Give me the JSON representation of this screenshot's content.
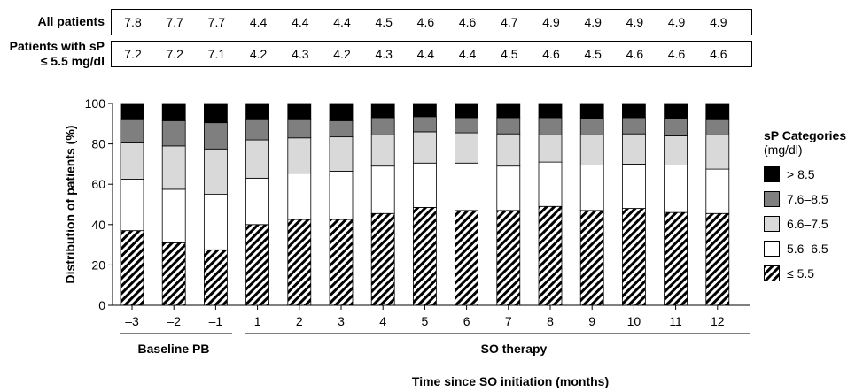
{
  "summary_rows": [
    {
      "label": "All patients",
      "values": [
        "7.8",
        "7.7",
        "7.7",
        "4.4",
        "4.4",
        "4.4",
        "4.5",
        "4.6",
        "4.6",
        "4.7",
        "4.9",
        "4.9",
        "4.9",
        "4.9",
        "4.9"
      ]
    },
    {
      "label": "Patients with sP ≤ 5.5 mg/dl",
      "values": [
        "7.2",
        "7.2",
        "7.1",
        "4.2",
        "4.3",
        "4.2",
        "4.3",
        "4.4",
        "4.4",
        "4.5",
        "4.6",
        "4.5",
        "4.6",
        "4.6",
        "4.6"
      ]
    }
  ],
  "legend": {
    "title": "sP Categories",
    "unit": "(mg/dl)"
  },
  "groups": [
    {
      "label": "Baseline PB",
      "from": "-3",
      "to": "-1"
    },
    {
      "label": "SO therapy",
      "from": "1",
      "to": "12"
    }
  ],
  "colors": {
    "gt85": "#000000",
    "c76_85": "#7f7f7f",
    "c66_75": "#d9d9d9",
    "c56_65": "#ffffff",
    "le55": "hatched"
  },
  "chart_data": {
    "type": "bar",
    "stacked": true,
    "categories": [
      "–3",
      "–2",
      "–1",
      "1",
      "2",
      "3",
      "4",
      "5",
      "6",
      "7",
      "8",
      "9",
      "10",
      "11",
      "12"
    ],
    "xlabel": "Time since SO initiation (months)",
    "ylabel": "Distribution of patients (%)",
    "ylim": [
      0,
      100
    ],
    "yticks": [
      0,
      20,
      40,
      60,
      80,
      100
    ],
    "series": [
      {
        "name": "≤ 5.5",
        "key": "le55",
        "values": [
          37,
          31,
          27.5,
          40,
          42.5,
          42.5,
          45.5,
          48.5,
          47,
          47,
          49,
          47,
          48,
          46,
          45.5
        ]
      },
      {
        "name": "5.6–6.5",
        "key": "c56_65",
        "values": [
          25.5,
          26.5,
          27.5,
          23,
          23,
          24,
          23.5,
          22,
          23.5,
          22,
          22,
          22.5,
          22,
          23.5,
          22
        ]
      },
      {
        "name": "6.6–7.5",
        "key": "c66_75",
        "values": [
          18,
          21.5,
          22.5,
          19,
          17.5,
          17,
          15.5,
          15.5,
          15,
          16,
          13.5,
          15,
          15,
          14.5,
          17
        ]
      },
      {
        "name": "7.6–8.5",
        "key": "c76_85",
        "values": [
          11.5,
          12.5,
          13,
          10,
          9,
          8,
          8.5,
          7.5,
          7.5,
          8,
          8.5,
          8,
          8,
          8.5,
          7.5
        ]
      },
      {
        "name": "> 8.5",
        "key": "gt85",
        "values": [
          8,
          8.5,
          9.5,
          8,
          8,
          8.5,
          7,
          6.5,
          7,
          7,
          7,
          7.5,
          7,
          7.5,
          8
        ]
      }
    ],
    "legend_position": "right"
  }
}
